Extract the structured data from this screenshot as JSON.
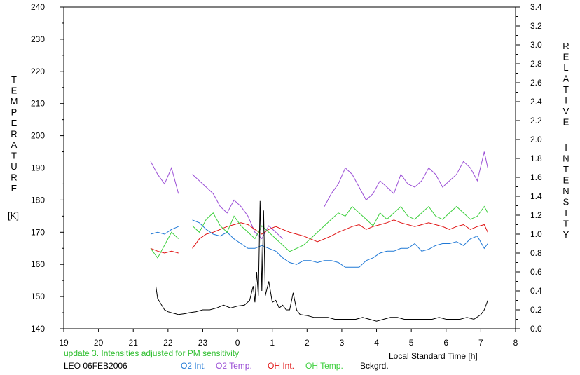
{
  "chart_data": {
    "type": "line",
    "y_left_label": "TEMPERATURE",
    "y_left_unit": "[K]",
    "y_right_label": "RELATIVE INTENSITY",
    "xlabel": "Local Standard Time [h]",
    "note": "update 3. Intensities adjusted for PM sensitivity",
    "station": "LEO 06FEB2006",
    "x_ticks": [
      "19",
      "20",
      "21",
      "22",
      "23",
      "0",
      "1",
      "2",
      "3",
      "4",
      "5",
      "6",
      "7",
      "8"
    ],
    "y_left_ticks": [
      140,
      150,
      160,
      170,
      180,
      190,
      200,
      210,
      220,
      230,
      240
    ],
    "y_right_ticks": [
      "0.0",
      "0.2",
      "0.4",
      "0.6",
      "0.8",
      "1.0",
      "1.2",
      "1.4",
      "1.6",
      "1.8",
      "2.0",
      "2.2",
      "2.4",
      "2.6",
      "2.8",
      "3.0",
      "3.2",
      "3.4"
    ],
    "ylim_left": [
      140,
      240
    ],
    "ylim_right": [
      0.0,
      3.4
    ],
    "xlim": [
      19,
      32
    ],
    "grid": false,
    "legend_position": "bottom",
    "series": [
      {
        "name": "O2 Int.",
        "axis": "right",
        "color": "#1f78d6",
        "x": [
          21.5,
          21.7,
          21.9,
          22.1,
          22.3,
          22.5,
          22.7,
          22.9,
          23.1,
          23.3,
          23.5,
          23.7,
          23.9,
          24.1,
          24.3,
          24.5,
          24.7,
          24.9,
          25.1,
          25.3,
          25.5,
          25.7,
          25.9,
          26.1,
          26.3,
          26.5,
          26.7,
          26.9,
          27.1,
          27.3,
          27.5,
          27.7,
          27.9,
          28.1,
          28.3,
          28.5,
          28.7,
          28.9,
          29.1,
          29.3,
          29.5,
          29.7,
          29.9,
          30.1,
          30.3,
          30.5,
          30.7,
          30.9,
          31.1,
          31.2
        ],
        "values": [
          1.0,
          1.02,
          1.0,
          1.05,
          1.08,
          null,
          1.15,
          1.12,
          1.05,
          1.0,
          0.98,
          1.02,
          0.95,
          0.9,
          0.85,
          0.85,
          0.88,
          0.85,
          0.82,
          0.75,
          0.7,
          0.68,
          0.72,
          0.72,
          0.7,
          0.72,
          0.72,
          0.7,
          0.65,
          0.65,
          0.65,
          0.72,
          0.75,
          0.8,
          0.82,
          0.82,
          0.85,
          0.85,
          0.9,
          0.82,
          0.84,
          0.88,
          0.9,
          0.9,
          0.92,
          0.88,
          0.95,
          0.98,
          0.85,
          0.9
        ]
      },
      {
        "name": "O2 Temp.",
        "axis": "left",
        "color": "#9b4fd6",
        "x": [
          21.5,
          21.7,
          21.9,
          22.1,
          22.3,
          22.5,
          22.7,
          22.9,
          23.1,
          23.3,
          23.5,
          23.7,
          23.9,
          24.1,
          24.3,
          24.5,
          24.7,
          24.9,
          25.1,
          25.3,
          25.5,
          25.7,
          25.9,
          26.1,
          26.3,
          26.5,
          26.7,
          26.9,
          27.1,
          27.3,
          27.5,
          27.7,
          27.9,
          28.1,
          28.3,
          28.5,
          28.7,
          28.9,
          29.1,
          29.3,
          29.5,
          29.7,
          29.9,
          30.1,
          30.3,
          30.5,
          30.7,
          30.9,
          31.1,
          31.2
        ],
        "values": [
          192,
          188,
          185,
          190,
          182,
          null,
          188,
          186,
          184,
          182,
          178,
          176,
          180,
          178,
          175,
          170,
          168,
          172,
          170,
          168,
          null,
          null,
          null,
          null,
          null,
          178,
          182,
          185,
          190,
          188,
          184,
          180,
          182,
          186,
          184,
          182,
          188,
          185,
          184,
          186,
          190,
          188,
          184,
          186,
          188,
          192,
          190,
          186,
          195,
          190
        ]
      },
      {
        "name": "OH Int.",
        "axis": "right",
        "color": "#e01010",
        "x": [
          21.5,
          21.7,
          21.9,
          22.1,
          22.3,
          22.5,
          22.7,
          22.9,
          23.1,
          23.3,
          23.5,
          23.7,
          23.9,
          24.1,
          24.3,
          24.5,
          24.7,
          24.9,
          25.1,
          25.3,
          25.5,
          25.7,
          25.9,
          26.1,
          26.3,
          26.5,
          26.7,
          26.9,
          27.1,
          27.3,
          27.5,
          27.7,
          27.9,
          28.1,
          28.3,
          28.5,
          28.7,
          28.9,
          29.1,
          29.3,
          29.5,
          29.7,
          29.9,
          30.1,
          30.3,
          30.5,
          30.7,
          30.9,
          31.1,
          31.2
        ],
        "values": [
          0.85,
          0.82,
          0.8,
          0.82,
          0.8,
          null,
          0.85,
          0.95,
          1.0,
          1.02,
          1.05,
          1.08,
          1.1,
          1.12,
          1.1,
          1.05,
          1.0,
          1.05,
          1.08,
          1.05,
          1.02,
          1.0,
          0.98,
          0.95,
          0.92,
          0.95,
          0.98,
          1.02,
          1.05,
          1.08,
          1.1,
          1.05,
          1.08,
          1.1,
          1.12,
          1.15,
          1.12,
          1.1,
          1.08,
          1.1,
          1.12,
          1.1,
          1.08,
          1.05,
          1.08,
          1.1,
          1.05,
          1.08,
          1.1,
          1.02
        ]
      },
      {
        "name": "OH Temp.",
        "axis": "left",
        "color": "#3ccf3c",
        "x": [
          21.5,
          21.7,
          21.9,
          22.1,
          22.3,
          22.5,
          22.7,
          22.9,
          23.1,
          23.3,
          23.5,
          23.7,
          23.9,
          24.1,
          24.3,
          24.5,
          24.7,
          24.9,
          25.1,
          25.3,
          25.5,
          25.7,
          25.9,
          26.1,
          26.3,
          26.5,
          26.7,
          26.9,
          27.1,
          27.3,
          27.5,
          27.7,
          27.9,
          28.1,
          28.3,
          28.5,
          28.7,
          28.9,
          29.1,
          29.3,
          29.5,
          29.7,
          29.9,
          30.1,
          30.3,
          30.5,
          30.7,
          30.9,
          31.1,
          31.2
        ],
        "values": [
          165,
          162,
          166,
          170,
          168,
          null,
          172,
          170,
          174,
          176,
          172,
          170,
          175,
          172,
          170,
          168,
          172,
          170,
          168,
          166,
          164,
          165,
          166,
          168,
          170,
          172,
          174,
          176,
          175,
          178,
          176,
          174,
          172,
          176,
          174,
          176,
          178,
          175,
          174,
          176,
          178,
          175,
          174,
          176,
          178,
          176,
          174,
          175,
          178,
          176
        ]
      },
      {
        "name": "Bckgrd.",
        "axis": "right",
        "color": "#000000",
        "x": [
          21.65,
          21.7,
          21.8,
          21.9,
          22.0,
          22.1,
          22.2,
          22.3,
          22.5,
          22.6,
          22.8,
          23.0,
          23.2,
          23.4,
          23.6,
          23.8,
          24.0,
          24.2,
          24.35,
          24.45,
          24.5,
          24.55,
          24.6,
          24.65,
          24.7,
          24.75,
          24.8,
          24.9,
          25.0,
          25.1,
          25.2,
          25.3,
          25.4,
          25.5,
          25.6,
          25.7,
          25.8,
          26.0,
          26.2,
          26.4,
          26.6,
          26.8,
          27.0,
          27.2,
          27.4,
          27.6,
          27.8,
          28.0,
          28.2,
          28.4,
          28.6,
          28.8,
          29.0,
          29.2,
          29.4,
          29.6,
          29.8,
          30.0,
          30.2,
          30.4,
          30.6,
          30.8,
          31.0,
          31.1,
          31.2
        ],
        "values": [
          0.45,
          0.32,
          0.26,
          0.2,
          0.18,
          0.17,
          0.16,
          0.15,
          0.16,
          0.17,
          0.18,
          0.2,
          0.2,
          0.22,
          0.25,
          0.22,
          0.24,
          0.25,
          0.3,
          0.45,
          0.28,
          0.6,
          0.35,
          1.35,
          0.4,
          1.25,
          0.35,
          0.5,
          0.28,
          0.3,
          0.22,
          0.25,
          0.2,
          0.2,
          0.38,
          0.2,
          0.15,
          0.14,
          0.12,
          0.12,
          0.12,
          0.1,
          0.1,
          0.1,
          0.1,
          0.12,
          0.1,
          0.08,
          0.1,
          0.12,
          0.12,
          0.1,
          0.1,
          0.1,
          0.1,
          0.1,
          0.12,
          0.1,
          0.1,
          0.1,
          0.12,
          0.1,
          0.15,
          0.2,
          0.3
        ]
      }
    ]
  }
}
